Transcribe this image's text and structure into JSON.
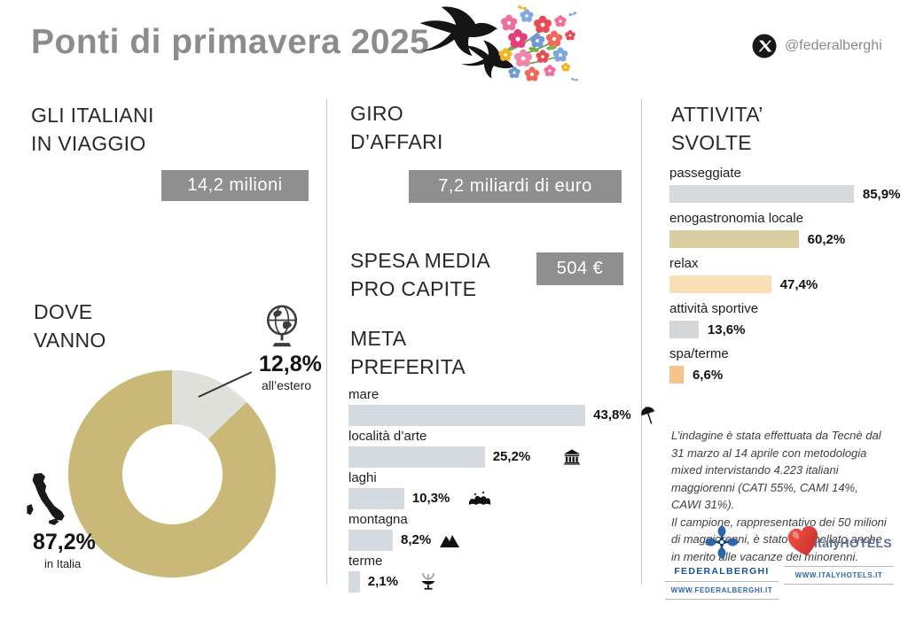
{
  "header": {
    "title": "Ponti di primavera 2025",
    "x_handle": "@federalberghi"
  },
  "sections": {
    "travelers": {
      "heading1": "GLI ITALIANI",
      "heading2": "IN VIAGGIO",
      "value": "14,2 milioni"
    },
    "where": {
      "heading1": "DOVE",
      "heading2": "VANNO"
    },
    "business": {
      "heading1": "GIRO",
      "heading2": "D’AFFARI",
      "value": "7,2 miliardi di euro"
    },
    "spend": {
      "heading1": "SPESA MEDIA",
      "heading2": "PRO CAPITE",
      "value": "504 €"
    },
    "destination": {
      "heading1": "META",
      "heading2": "PREFERITA"
    },
    "activities": {
      "heading1": "ATTIVITA’",
      "heading2": "SVOLTE"
    }
  },
  "chart_data": [
    {
      "type": "pie",
      "title": "DOVE VANNO",
      "donut": true,
      "slices": [
        {
          "label": "in Italia",
          "value": 87.2,
          "display": "87,2%",
          "color": "#c9b877"
        },
        {
          "label": "all’estero",
          "value": 12.8,
          "display": "12,8%",
          "color": "#e0e0da"
        }
      ]
    },
    {
      "type": "bar",
      "title": "META PREFERITA",
      "orientation": "horizontal",
      "xlim": [
        0,
        50
      ],
      "bar_color": "#d4dadf",
      "categories": [
        "mare",
        "località d’arte",
        "laghi",
        "montagna",
        "terme"
      ],
      "values": [
        43.8,
        25.2,
        10.3,
        8.2,
        2.1
      ],
      "labels": [
        "43,8%",
        "25,2%",
        "10,3%",
        "8,2%",
        "2,1%"
      ],
      "icons": [
        "beach-umbrella",
        "museum",
        "lake",
        "mountains",
        "thermal-fountain"
      ]
    },
    {
      "type": "bar",
      "title": "ATTIVITA’ SVOLTE",
      "orientation": "horizontal",
      "xlim": [
        0,
        100
      ],
      "categories": [
        "passeggiate",
        "enogastronomia locale",
        "relax",
        "attività sportive",
        "spa/terme"
      ],
      "values": [
        85.9,
        60.2,
        47.4,
        13.6,
        6.6
      ],
      "labels": [
        "85,9%",
        "60,2%",
        "47,4%",
        "13,6%",
        "6,6%"
      ],
      "bar_colors": [
        "#d7dadc",
        "#d9cda1",
        "#fadfb4",
        "#d3d7da",
        "#f7c28c"
      ]
    }
  ],
  "footnote": {
    "para1": "L’indagine è stata effettuata da Tecnè dal 31 marzo al 14 aprile con metodologia mixed intervistando 4.223 italiani maggiorenni (CATI 55%, CAMI 14%, CAWI 31%).",
    "para2": "Il campione, rappresentativo dei 50 milioni di maggiorenni, è stato interpellato anche in merito alle vacanze dei minorenni."
  },
  "logos": {
    "federalberghi": {
      "name": "FEDERALBERGHI",
      "website": "WWW.FEDERALBERGHI.IT"
    },
    "italyhotels": {
      "name": "ItalyHOTELS",
      "website": "WWW.ITALYHOTELS.IT"
    }
  }
}
